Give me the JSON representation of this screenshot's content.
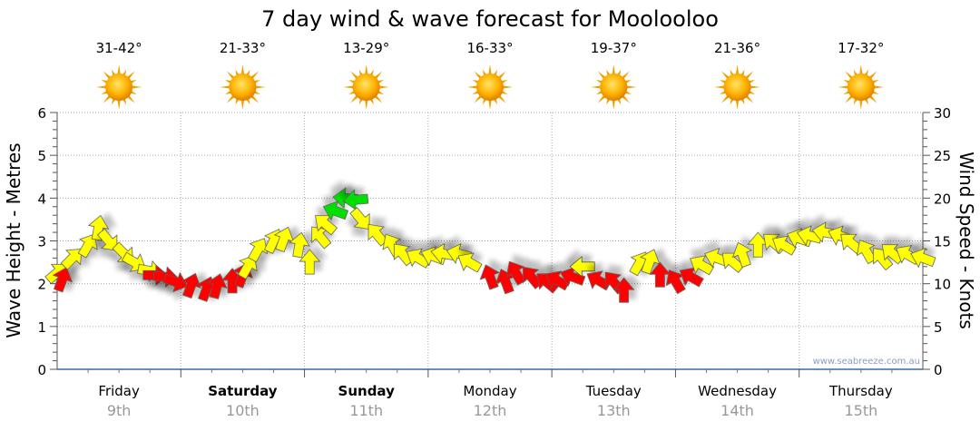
{
  "chart_data": {
    "type": "scatter",
    "title": "7 day wind & wave forecast for Moolooloo",
    "ylabel": "Wave Height - Metres",
    "y2label": "Wind Speed - Knots",
    "ylim": [
      0,
      6
    ],
    "y2lim": [
      0,
      30
    ],
    "yticks": [
      "0",
      "1",
      "2",
      "3",
      "4",
      "5",
      "6"
    ],
    "y2ticks": [
      "0",
      "5",
      "10",
      "15",
      "20",
      "25",
      "30"
    ],
    "grid": true,
    "watermark": "www.seabreeze.com.au",
    "days": [
      {
        "name": "Friday",
        "date": "9th",
        "temp": "31-42°",
        "bold": false,
        "icon": "sun-icon"
      },
      {
        "name": "Saturday",
        "date": "10th",
        "temp": "21-33°",
        "bold": true,
        "icon": "sun-icon"
      },
      {
        "name": "Sunday",
        "date": "11th",
        "temp": "13-29°",
        "bold": true,
        "icon": "sun-icon"
      },
      {
        "name": "Monday",
        "date": "12th",
        "temp": "16-33°",
        "bold": false,
        "icon": "sun-icon"
      },
      {
        "name": "Tuesday",
        "date": "13th",
        "temp": "19-37°",
        "bold": false,
        "icon": "sun-icon"
      },
      {
        "name": "Wednesday",
        "date": "14th",
        "temp": "21-36°",
        "bold": false,
        "icon": "sun-icon"
      },
      {
        "name": "Thursday",
        "date": "15th",
        "temp": "17-32°",
        "bold": false,
        "icon": "sun-icon"
      }
    ],
    "colors": {
      "r": "#ff0000",
      "y": "#ffff00",
      "g": "#00e000"
    },
    "wind_columns": [
      "hour",
      "knots",
      "arrow_angle_deg",
      "color"
    ],
    "wind": [
      [
        0,
        11.3,
        40,
        "y"
      ],
      [
        1,
        10.5,
        70,
        "r"
      ],
      [
        3,
        13,
        45,
        "y"
      ],
      [
        6,
        14.5,
        60,
        "y"
      ],
      [
        8,
        16.5,
        80,
        "y"
      ],
      [
        10,
        15,
        -50,
        "y"
      ],
      [
        13,
        13.5,
        -45,
        "y"
      ],
      [
        15,
        12.5,
        -30,
        "y"
      ],
      [
        18,
        11.5,
        -10,
        "y"
      ],
      [
        19,
        11,
        0,
        "r"
      ],
      [
        21,
        10.8,
        -5,
        "r"
      ],
      [
        23,
        10.2,
        -20,
        "r"
      ],
      [
        26,
        9.8,
        70,
        "r"
      ],
      [
        29,
        9.4,
        70,
        "r"
      ],
      [
        31,
        9.7,
        75,
        "r"
      ],
      [
        34,
        10.3,
        90,
        "r"
      ],
      [
        36,
        11,
        70,
        "r"
      ],
      [
        37,
        12,
        60,
        "y"
      ],
      [
        39,
        14,
        60,
        "y"
      ],
      [
        42,
        15,
        65,
        "y"
      ],
      [
        44,
        15.2,
        70,
        "y"
      ],
      [
        47,
        14.5,
        80,
        "y"
      ],
      [
        49,
        12.5,
        90,
        "y"
      ],
      [
        51,
        15.5,
        130,
        "y"
      ],
      [
        52,
        17,
        140,
        "y"
      ],
      [
        54,
        18.5,
        160,
        "g"
      ],
      [
        56,
        20,
        175,
        "g"
      ],
      [
        58,
        19.8,
        185,
        "g"
      ],
      [
        59,
        17.5,
        -50,
        "y"
      ],
      [
        62,
        15.8,
        130,
        "y"
      ],
      [
        65,
        14.5,
        120,
        "y"
      ],
      [
        67,
        13.5,
        130,
        "y"
      ],
      [
        70,
        13,
        150,
        "y"
      ],
      [
        73,
        13.2,
        160,
        "y"
      ],
      [
        75,
        13.5,
        170,
        "y"
      ],
      [
        78,
        13.5,
        165,
        "y"
      ],
      [
        80,
        12.5,
        150,
        "y"
      ],
      [
        84,
        10.8,
        110,
        "r"
      ],
      [
        87,
        10.3,
        110,
        "r"
      ],
      [
        89,
        11.3,
        120,
        "r"
      ],
      [
        92,
        10.8,
        130,
        "r"
      ],
      [
        95,
        10.2,
        140,
        "r"
      ],
      [
        97,
        10.4,
        150,
        "r"
      ],
      [
        100,
        10.8,
        160,
        "r"
      ],
      [
        102,
        12,
        180,
        "y"
      ],
      [
        105,
        10.4,
        150,
        "r"
      ],
      [
        108,
        10.2,
        130,
        "r"
      ],
      [
        110,
        9.2,
        90,
        "r"
      ],
      [
        113,
        12.4,
        60,
        "y"
      ],
      [
        115,
        12.6,
        70,
        "y"
      ],
      [
        117,
        11,
        90,
        "r"
      ],
      [
        120,
        10.3,
        120,
        "r"
      ],
      [
        123,
        10.8,
        150,
        "r"
      ],
      [
        125,
        12.2,
        150,
        "y"
      ],
      [
        128,
        13,
        160,
        "y"
      ],
      [
        131,
        12.6,
        140,
        "y"
      ],
      [
        133,
        13.4,
        110,
        "y"
      ],
      [
        136,
        14.5,
        90,
        "y"
      ],
      [
        139,
        14.8,
        140,
        "y"
      ],
      [
        141,
        14.5,
        150,
        "y"
      ],
      [
        144,
        15.3,
        160,
        "y"
      ],
      [
        146,
        15.6,
        165,
        "y"
      ],
      [
        149,
        16,
        170,
        "y"
      ],
      [
        152,
        15.6,
        160,
        "y"
      ],
      [
        154,
        14.8,
        140,
        "y"
      ],
      [
        157,
        13.8,
        120,
        "y"
      ],
      [
        160,
        13,
        130,
        "y"
      ],
      [
        162,
        13.6,
        140,
        "y"
      ],
      [
        165,
        13.4,
        150,
        "y"
      ],
      [
        168,
        13,
        160,
        "y"
      ]
    ]
  }
}
